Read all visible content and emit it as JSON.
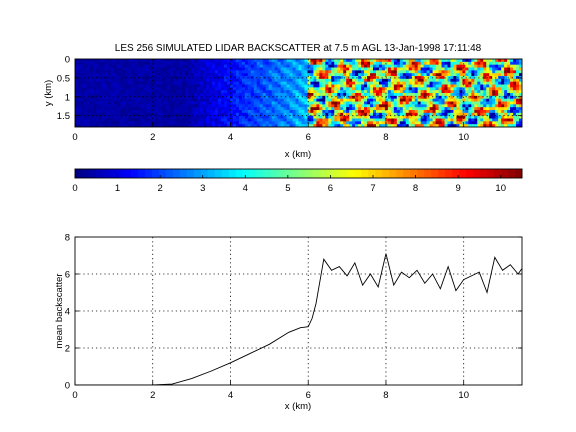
{
  "chart_data": [
    {
      "type": "heatmap",
      "title": "LES 256 SIMULATED LIDAR BACKSCATTER at 7.5 m AGL 13-Jan-1998 17:11:48",
      "xlabel": "x (km)",
      "ylabel": "y (km)",
      "xlim": [
        0,
        11.5
      ],
      "ylim": [
        0,
        1.8
      ],
      "y_reversed": true,
      "xticks": [
        "0",
        "2",
        "4",
        "6",
        "8",
        "10"
      ],
      "yticks": [
        "0",
        "0.5",
        "1",
        "1.5"
      ],
      "grid": true,
      "colormap": "jet",
      "clim": [
        0,
        10.5
      ],
      "field_description_by_x": [
        {
          "x_range": [
            0,
            3.0
          ],
          "level": 0.4
        },
        {
          "x_range": [
            3.0,
            6.0
          ],
          "level_start": 0.5,
          "level_end": 3.2
        },
        {
          "x_range": [
            6.0,
            11.5
          ],
          "level": 5.8,
          "turbulent_structures": true
        }
      ]
    },
    {
      "type": "colorbar",
      "ticks": [
        "0",
        "1",
        "2",
        "3",
        "4",
        "5",
        "6",
        "7",
        "8",
        "9",
        "10"
      ],
      "range": [
        0,
        10.5
      ]
    },
    {
      "type": "line",
      "xlabel": "x (km)",
      "ylabel": "mean backscatter",
      "xlim": [
        0,
        11.5
      ],
      "ylim": [
        0,
        8
      ],
      "xticks": [
        "0",
        "2",
        "4",
        "6",
        "8",
        "10"
      ],
      "yticks": [
        "0",
        "2",
        "4",
        "6",
        "8"
      ],
      "grid": true,
      "series": [
        {
          "color": "#000000",
          "x": [
            0,
            1,
            2,
            2.5,
            3,
            3.5,
            4,
            4.5,
            5,
            5.5,
            5.8,
            6.0,
            6.1,
            6.2,
            6.3,
            6.4,
            6.6,
            6.8,
            7.0,
            7.2,
            7.4,
            7.6,
            7.8,
            8.0,
            8.2,
            8.4,
            8.6,
            8.8,
            9.0,
            9.2,
            9.4,
            9.6,
            9.8,
            10.0,
            10.2,
            10.4,
            10.6,
            10.8,
            11.0,
            11.2,
            11.4,
            11.5
          ],
          "y": [
            0.0,
            0.0,
            0.0,
            0.05,
            0.35,
            0.75,
            1.2,
            1.7,
            2.2,
            2.85,
            3.1,
            3.15,
            3.6,
            4.4,
            5.6,
            6.8,
            6.2,
            6.4,
            5.9,
            6.6,
            5.4,
            6.0,
            5.3,
            7.1,
            5.4,
            6.1,
            5.8,
            6.2,
            5.5,
            6.0,
            5.2,
            6.4,
            5.1,
            5.7,
            5.9,
            6.1,
            5.0,
            6.9,
            6.2,
            6.5,
            6.0,
            6.3
          ]
        }
      ]
    }
  ]
}
